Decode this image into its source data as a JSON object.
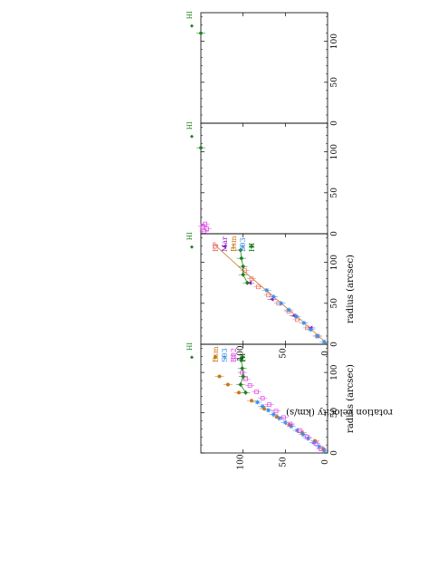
{
  "figure": {
    "ylabel": "rotation velocity (km/s)",
    "panels": [
      {
        "xlabel": "radius (arcsec)",
        "xticks": [
          "0",
          "50",
          "100"
        ],
        "yticks": [
          "0",
          "50",
          "100"
        ],
        "legend": [
          {
            "label": "Bsm",
            "color": "#c87818",
            "symbol": "circle"
          },
          {
            "label": "S03",
            "color": "#3c8ce6",
            "symbol": "star"
          },
          {
            "label": "B02",
            "color": "#e040e8",
            "symbol": "open-square"
          },
          {
            "label": "HI",
            "color": "#208020",
            "symbol": "diamond"
          }
        ],
        "edge_label": "HI"
      },
      {
        "xlabel": "radius (arcsec)",
        "xticks": [
          "0",
          "50",
          "100"
        ],
        "yticks": [
          "0",
          "50",
          "100"
        ],
        "legend": [
          {
            "label": "FP",
            "color": "#f06868",
            "symbol": "open-square"
          },
          {
            "label": "Mar",
            "color": "#9020c0",
            "symbol": "triangle"
          },
          {
            "label": "Bsm",
            "color": "#c87818",
            "symbol": "line"
          },
          {
            "label": "S03",
            "color": "#3c8ce6",
            "symbol": "star"
          },
          {
            "label": "HI",
            "color": "#208020",
            "symbol": "diamond"
          }
        ],
        "edge_label": "HI"
      },
      {
        "xlabel": "",
        "xticks": [
          "0",
          "50",
          "100"
        ],
        "yticks": [],
        "legend": [],
        "edge_label": "HI"
      },
      {
        "xlabel": "",
        "xticks": [
          "0",
          "50",
          "100"
        ],
        "yticks": [],
        "legend": [],
        "edge_label": "HI"
      }
    ]
  },
  "chart_data": [
    {
      "type": "scatter",
      "title": "",
      "xlabel": "radius (arcsec)",
      "ylabel": "rotation velocity (km/s)",
      "xlim": [
        0,
        135
      ],
      "ylim": [
        0,
        150
      ],
      "series": [
        {
          "name": "Bsm",
          "color": "#c87818",
          "x": [
            5,
            15,
            25,
            35,
            45,
            55,
            65,
            75,
            85,
            95
          ],
          "y": [
            5,
            15,
            30,
            45,
            60,
            75,
            90,
            105,
            118,
            128
          ]
        },
        {
          "name": "S03",
          "color": "#3c8ce6",
          "x": [
            3,
            8,
            13,
            18,
            23,
            28,
            33,
            38,
            43,
            48,
            53,
            58,
            63
          ],
          "y": [
            4,
            10,
            16,
            23,
            29,
            36,
            43,
            50,
            57,
            64,
            70,
            77,
            83
          ]
        },
        {
          "name": "B02",
          "color": "#e040e8",
          "x": [
            5,
            12,
            20,
            28,
            36,
            44,
            52,
            60,
            68,
            76,
            84,
            92,
            100
          ],
          "y": [
            8,
            14,
            24,
            33,
            44,
            52,
            61,
            69,
            77,
            84,
            92,
            97,
            101
          ]
        },
        {
          "name": "HI",
          "color": "#208020",
          "x": [
            75,
            85,
            95,
            105,
            115
          ],
          "y": [
            97,
            103,
            100,
            101,
            102
          ]
        }
      ]
    },
    {
      "type": "scatter",
      "title": "",
      "xlabel": "radius (arcsec)",
      "ylabel": "rotation velocity (km/s)",
      "xlim": [
        0,
        135
      ],
      "ylim": [
        0,
        150
      ],
      "series": [
        {
          "name": "FP",
          "color": "#f06868",
          "x": [
            10,
            20,
            30,
            40,
            50,
            60,
            70,
            80,
            90
          ],
          "y": [
            12,
            24,
            36,
            46,
            58,
            70,
            82,
            90,
            98
          ]
        },
        {
          "name": "Mar",
          "color": "#9020c0",
          "x": [
            20,
            35,
            55,
            75
          ],
          "y": [
            20,
            40,
            66,
            92
          ]
        },
        {
          "name": "Bsm",
          "color": "#c87818",
          "x": [
            0,
            30,
            60,
            90,
            120
          ],
          "y": [
            0,
            32,
            66,
            100,
            132
          ]
        },
        {
          "name": "S03",
          "color": "#3c8ce6",
          "x": [
            3,
            10,
            18,
            26,
            34,
            42,
            50,
            58,
            66
          ],
          "y": [
            4,
            12,
            20,
            28,
            37,
            46,
            55,
            64,
            72
          ]
        },
        {
          "name": "HI",
          "color": "#208020",
          "x": [
            75,
            85,
            95,
            105,
            115
          ],
          "y": [
            95,
            100,
            100,
            102,
            103
          ]
        }
      ]
    },
    {
      "type": "scatter",
      "title": "",
      "xlabel": "",
      "ylabel": "",
      "xlim": [
        0,
        135
      ],
      "ylim": [
        0,
        150
      ],
      "series": [
        {
          "name": "HI",
          "color": "#208020",
          "x": [
            105
          ],
          "y": [
            150
          ]
        },
        {
          "name": "",
          "color": "#e040e8",
          "x": [
            3,
            6,
            9,
            12
          ],
          "y": [
            146,
            143,
            148,
            145
          ]
        }
      ]
    },
    {
      "type": "scatter",
      "title": "",
      "xlabel": "",
      "ylabel": "",
      "xlim": [
        0,
        135
      ],
      "ylim": [
        0,
        150
      ],
      "series": [
        {
          "name": "HI",
          "color": "#208020",
          "x": [
            110
          ],
          "y": [
            150
          ]
        }
      ]
    }
  ]
}
